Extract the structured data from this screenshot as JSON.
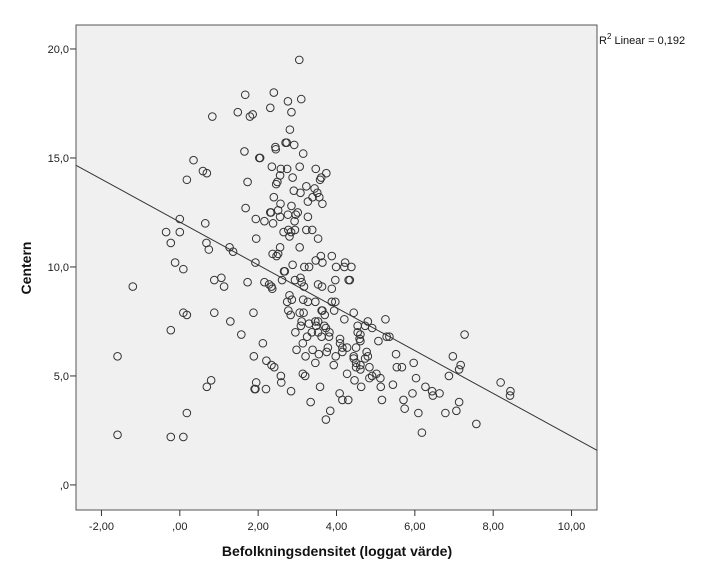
{
  "chart_data": {
    "type": "scatter",
    "xlabel": "Befolkningsdensitet (loggat värde)",
    "ylabel": "Centern",
    "xlim": [
      -2.65,
      10.65
    ],
    "ylim": [
      -1.15,
      21.1
    ],
    "xticks": [
      -2,
      0,
      2,
      4,
      6,
      8,
      10
    ],
    "xtick_labels": [
      "-2,00",
      ",00",
      "2,00",
      "4,00",
      "6,00",
      "8,00",
      "10,00"
    ],
    "yticks": [
      0,
      5,
      10,
      15,
      20
    ],
    "ytick_labels": [
      ",0",
      "5,0",
      "10,0",
      "15,0",
      "20,0"
    ],
    "grid": false,
    "plot_background": "#f0f0f0",
    "marker": "open-circle",
    "fit_line": {
      "type": "linear",
      "intercept": 12.06,
      "slope": -0.983,
      "r2_label_prefix": "R",
      "r2_label_sup": "2",
      "r2_label_rest": " Linear = 0,192",
      "legend_placement": "top-right"
    },
    "points": [
      [
        3.05,
        19.5
      ],
      [
        1.67,
        17.9
      ],
      [
        2.4,
        18.0
      ],
      [
        3.1,
        17.7
      ],
      [
        2.76,
        17.6
      ],
      [
        2.31,
        17.3
      ],
      [
        1.48,
        17.1
      ],
      [
        1.86,
        17.0
      ],
      [
        1.79,
        16.9
      ],
      [
        2.85,
        17.1
      ],
      [
        0.83,
        16.9
      ],
      [
        2.81,
        16.3
      ],
      [
        2.7,
        15.7
      ],
      [
        2.73,
        15.7
      ],
      [
        2.92,
        15.6
      ],
      [
        1.65,
        15.3
      ],
      [
        2.44,
        15.5
      ],
      [
        2.45,
        15.4
      ],
      [
        3.15,
        15.2
      ],
      [
        2.03,
        15.0
      ],
      [
        2.05,
        15.0
      ],
      [
        0.35,
        14.9
      ],
      [
        2.35,
        14.6
      ],
      [
        2.58,
        14.5
      ],
      [
        2.74,
        14.5
      ],
      [
        3.06,
        14.6
      ],
      [
        3.47,
        14.5
      ],
      [
        3.74,
        14.3
      ],
      [
        0.59,
        14.4
      ],
      [
        0.69,
        14.3
      ],
      [
        0.18,
        14.0
      ],
      [
        2.56,
        14.2
      ],
      [
        2.88,
        14.1
      ],
      [
        2.49,
        13.9
      ],
      [
        2.46,
        13.8
      ],
      [
        3.58,
        14.0
      ],
      [
        3.61,
        14.1
      ],
      [
        1.73,
        13.9
      ],
      [
        3.23,
        13.7
      ],
      [
        3.44,
        13.6
      ],
      [
        3.51,
        13.4
      ],
      [
        3.08,
        13.4
      ],
      [
        2.91,
        13.5
      ],
      [
        3.56,
        13.2
      ],
      [
        3.39,
        13.2
      ],
      [
        2.4,
        13.2
      ],
      [
        3.27,
        13.0
      ],
      [
        3.64,
        12.9
      ],
      [
        2.57,
        12.9
      ],
      [
        1.68,
        12.7
      ],
      [
        2.85,
        12.8
      ],
      [
        2.51,
        12.6
      ],
      [
        2.31,
        12.5
      ],
      [
        2.33,
        12.5
      ],
      [
        3.01,
        12.5
      ],
      [
        2.96,
        12.4
      ],
      [
        2.76,
        12.4
      ],
      [
        3.27,
        12.3
      ],
      [
        2.56,
        12.3
      ],
      [
        1.94,
        12.2
      ],
      [
        0.0,
        12.2
      ],
      [
        2.16,
        12.1
      ],
      [
        2.93,
        12.1
      ],
      [
        2.38,
        12.0
      ],
      [
        0.65,
        12.0
      ],
      [
        2.77,
        11.7
      ],
      [
        3.23,
        11.7
      ],
      [
        3.38,
        11.7
      ],
      [
        2.65,
        11.6
      ],
      [
        2.84,
        11.6
      ],
      [
        -0.35,
        11.6
      ],
      [
        0.0,
        11.6
      ],
      [
        2.94,
        11.7
      ],
      [
        2.8,
        11.4
      ],
      [
        3.53,
        11.3
      ],
      [
        1.95,
        11.3
      ],
      [
        -0.23,
        11.1
      ],
      [
        0.68,
        11.1
      ],
      [
        2.56,
        10.9
      ],
      [
        3.06,
        10.9
      ],
      [
        1.27,
        10.9
      ],
      [
        0.74,
        10.8
      ],
      [
        1.36,
        10.7
      ],
      [
        2.37,
        10.6
      ],
      [
        2.51,
        10.6
      ],
      [
        2.47,
        10.5
      ],
      [
        3.6,
        10.5
      ],
      [
        3.88,
        10.5
      ],
      [
        3.47,
        10.3
      ],
      [
        3.64,
        10.2
      ],
      [
        -0.12,
        10.2
      ],
      [
        1.93,
        10.2
      ],
      [
        2.88,
        10.1
      ],
      [
        4.22,
        10.2
      ],
      [
        4.2,
        10.0
      ],
      [
        4.38,
        10.0
      ],
      [
        3.99,
        10.0
      ],
      [
        3.18,
        10.0
      ],
      [
        3.3,
        10.0
      ],
      [
        0.09,
        9.9
      ],
      [
        2.66,
        9.8
      ],
      [
        2.68,
        9.8
      ],
      [
        0.88,
        9.4
      ],
      [
        1.06,
        9.5
      ],
      [
        1.73,
        9.3
      ],
      [
        2.16,
        9.3
      ],
      [
        2.28,
        9.2
      ],
      [
        2.34,
        9.1
      ],
      [
        2.36,
        9.0
      ],
      [
        2.61,
        9.4
      ],
      [
        3.08,
        9.5
      ],
      [
        3.11,
        9.3
      ],
      [
        3.53,
        9.2
      ],
      [
        3.63,
        9.1
      ],
      [
        3.97,
        9.4
      ],
      [
        4.31,
        9.4
      ],
      [
        4.34,
        9.4
      ],
      [
        2.94,
        9.4
      ],
      [
        -1.2,
        9.1
      ],
      [
        1.13,
        9.1
      ],
      [
        3.17,
        9.1
      ],
      [
        3.88,
        9.0
      ],
      [
        2.8,
        8.7
      ],
      [
        2.86,
        8.5
      ],
      [
        2.74,
        8.4
      ],
      [
        3.15,
        8.5
      ],
      [
        3.27,
        8.4
      ],
      [
        3.46,
        8.4
      ],
      [
        3.88,
        8.4
      ],
      [
        3.97,
        8.4
      ],
      [
        3.62,
        8.0
      ],
      [
        3.64,
        8.0
      ],
      [
        3.94,
        8.0
      ],
      [
        3.7,
        7.8
      ],
      [
        2.77,
        8.0
      ],
      [
        3.06,
        7.9
      ],
      [
        3.16,
        7.9
      ],
      [
        2.83,
        7.8
      ],
      [
        0.09,
        7.9
      ],
      [
        0.18,
        7.8
      ],
      [
        0.88,
        7.9
      ],
      [
        1.88,
        7.9
      ],
      [
        4.44,
        7.9
      ],
      [
        4.2,
        7.6
      ],
      [
        4.8,
        7.5
      ],
      [
        5.25,
        7.6
      ],
      [
        1.29,
        7.5
      ],
      [
        3.11,
        7.5
      ],
      [
        3.46,
        7.5
      ],
      [
        3.53,
        7.5
      ],
      [
        3.48,
        7.3
      ],
      [
        3.3,
        7.4
      ],
      [
        3.69,
        7.3
      ],
      [
        4.54,
        7.3
      ],
      [
        3.09,
        7.3
      ],
      [
        3.73,
        7.2
      ],
      [
        4.73,
        7.3
      ],
      [
        4.91,
        7.2
      ],
      [
        -0.23,
        7.1
      ],
      [
        2.95,
        7.0
      ],
      [
        3.37,
        7.0
      ],
      [
        3.53,
        7.0
      ],
      [
        3.82,
        7.0
      ],
      [
        4.54,
        7.0
      ],
      [
        3.62,
        6.8
      ],
      [
        3.81,
        6.8
      ],
      [
        4.61,
        6.9
      ],
      [
        1.57,
        6.9
      ],
      [
        3.25,
        6.8
      ],
      [
        7.27,
        6.9
      ],
      [
        5.28,
        6.8
      ],
      [
        5.35,
        6.8
      ],
      [
        4.59,
        6.7
      ],
      [
        4.09,
        6.7
      ],
      [
        4.61,
        6.6
      ],
      [
        5.07,
        6.6
      ],
      [
        4.09,
        6.5
      ],
      [
        3.14,
        6.5
      ],
      [
        2.12,
        6.5
      ],
      [
        4.15,
        6.3
      ],
      [
        4.27,
        6.3
      ],
      [
        4.5,
        6.3
      ],
      [
        3.78,
        6.3
      ],
      [
        3.39,
        6.2
      ],
      [
        2.98,
        6.2
      ],
      [
        3.75,
        6.1
      ],
      [
        4.15,
        6.1
      ],
      [
        4.77,
        6.1
      ],
      [
        3.55,
        6.0
      ],
      [
        5.52,
        6.0
      ],
      [
        3.98,
        5.9
      ],
      [
        4.44,
        5.9
      ],
      [
        4.8,
        5.9
      ],
      [
        1.89,
        5.9
      ],
      [
        6.97,
        5.9
      ],
      [
        3.21,
        5.9
      ],
      [
        -1.59,
        5.9
      ],
      [
        4.73,
        5.8
      ],
      [
        4.44,
        5.8
      ],
      [
        4.5,
        5.6
      ],
      [
        2.21,
        5.7
      ],
      [
        3.46,
        5.6
      ],
      [
        5.97,
        5.6
      ],
      [
        3.93,
        5.5
      ],
      [
        4.61,
        5.5
      ],
      [
        7.17,
        5.5
      ],
      [
        5.54,
        5.4
      ],
      [
        5.67,
        5.4
      ],
      [
        2.34,
        5.5
      ],
      [
        2.41,
        5.4
      ],
      [
        4.5,
        5.4
      ],
      [
        4.84,
        5.4
      ],
      [
        4.61,
        5.3
      ],
      [
        7.13,
        5.3
      ],
      [
        4.27,
        5.1
      ],
      [
        5.02,
        5.1
      ],
      [
        4.91,
        5.0
      ],
      [
        3.14,
        5.1
      ],
      [
        3.2,
        5.0
      ],
      [
        2.58,
        5.0
      ],
      [
        6.87,
        5.0
      ],
      [
        6.03,
        4.9
      ],
      [
        5.12,
        4.9
      ],
      [
        4.84,
        4.9
      ],
      [
        4.46,
        4.8
      ],
      [
        0.8,
        4.8
      ],
      [
        2.59,
        4.7
      ],
      [
        1.95,
        4.7
      ],
      [
        8.19,
        4.7
      ],
      [
        5.44,
        4.6
      ],
      [
        3.58,
        4.5
      ],
      [
        4.63,
        4.5
      ],
      [
        5.13,
        4.5
      ],
      [
        6.27,
        4.5
      ],
      [
        0.69,
        4.5
      ],
      [
        1.91,
        4.4
      ],
      [
        1.93,
        4.4
      ],
      [
        2.2,
        4.4
      ],
      [
        2.84,
        4.3
      ],
      [
        6.44,
        4.3
      ],
      [
        6.46,
        4.1
      ],
      [
        6.63,
        4.2
      ],
      [
        5.94,
        4.2
      ],
      [
        8.44,
        4.3
      ],
      [
        8.43,
        4.1
      ],
      [
        4.08,
        4.2
      ],
      [
        4.15,
        3.9
      ],
      [
        4.3,
        3.9
      ],
      [
        5.16,
        3.9
      ],
      [
        5.71,
        3.9
      ],
      [
        3.34,
        3.8
      ],
      [
        7.13,
        3.8
      ],
      [
        5.74,
        3.5
      ],
      [
        3.84,
        3.4
      ],
      [
        6.09,
        3.3
      ],
      [
        6.78,
        3.3
      ],
      [
        7.06,
        3.4
      ],
      [
        0.18,
        3.3
      ],
      [
        3.73,
        3.0
      ],
      [
        7.57,
        2.8
      ],
      [
        6.18,
        2.4
      ],
      [
        -1.59,
        2.3
      ],
      [
        -0.23,
        2.2
      ],
      [
        0.09,
        2.2
      ]
    ]
  }
}
